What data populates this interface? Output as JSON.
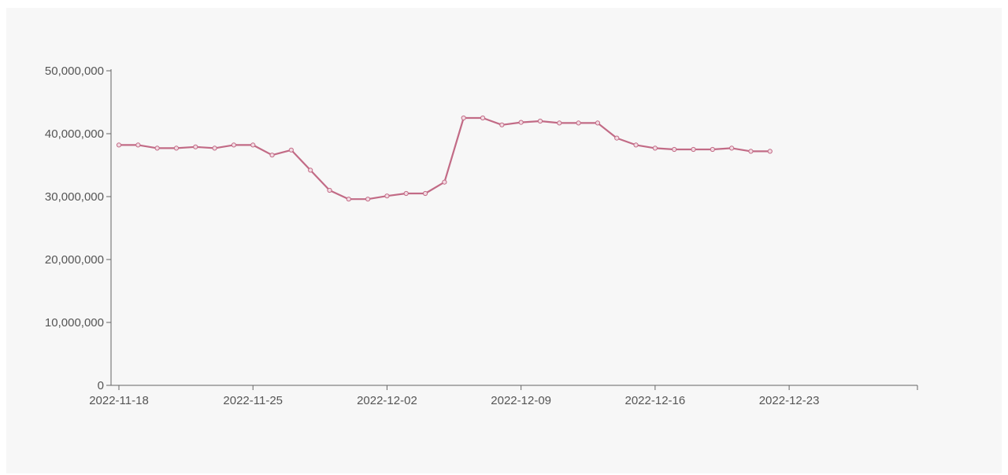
{
  "chart_data": {
    "type": "line",
    "title": "",
    "xlabel": "",
    "ylabel": "",
    "x_start": "2022-11-18",
    "x_end": "2022-12-29",
    "ylim": [
      0,
      50000000
    ],
    "y_ticks": [
      {
        "value": 0,
        "label": "0"
      },
      {
        "value": 10000000,
        "label": "10,000,000"
      },
      {
        "value": 20000000,
        "label": "20,000,000"
      },
      {
        "value": 30000000,
        "label": "30,000,000"
      },
      {
        "value": 40000000,
        "label": "40,000,000"
      },
      {
        "value": 50000000,
        "label": "50,000,000"
      }
    ],
    "x_ticks": [
      {
        "value": "2022-11-18",
        "label": "2022-11-18"
      },
      {
        "value": "2022-11-25",
        "label": "2022-11-25"
      },
      {
        "value": "2022-12-02",
        "label": "2022-12-02"
      },
      {
        "value": "2022-12-09",
        "label": "2022-12-09"
      },
      {
        "value": "2022-12-16",
        "label": "2022-12-16"
      },
      {
        "value": "2022-12-23",
        "label": "2022-12-23"
      }
    ],
    "grid": false,
    "legend": "none",
    "series": [
      {
        "color": "#c26b86",
        "points": [
          {
            "x": "2022-11-18",
            "y": 38200000
          },
          {
            "x": "2022-11-19",
            "y": 38200000
          },
          {
            "x": "2022-11-20",
            "y": 37700000
          },
          {
            "x": "2022-11-21",
            "y": 37700000
          },
          {
            "x": "2022-11-22",
            "y": 37900000
          },
          {
            "x": "2022-11-23",
            "y": 37700000
          },
          {
            "x": "2022-11-24",
            "y": 38200000
          },
          {
            "x": "2022-11-25",
            "y": 38200000
          },
          {
            "x": "2022-11-26",
            "y": 36600000
          },
          {
            "x": "2022-11-27",
            "y": 37400000
          },
          {
            "x": "2022-11-28",
            "y": 34200000
          },
          {
            "x": "2022-11-29",
            "y": 31000000
          },
          {
            "x": "2022-11-30",
            "y": 29600000
          },
          {
            "x": "2022-12-01",
            "y": 29600000
          },
          {
            "x": "2022-12-02",
            "y": 30100000
          },
          {
            "x": "2022-12-03",
            "y": 30500000
          },
          {
            "x": "2022-12-04",
            "y": 30500000
          },
          {
            "x": "2022-12-05",
            "y": 32300000
          },
          {
            "x": "2022-12-06",
            "y": 42500000
          },
          {
            "x": "2022-12-07",
            "y": 42500000
          },
          {
            "x": "2022-12-08",
            "y": 41400000
          },
          {
            "x": "2022-12-09",
            "y": 41800000
          },
          {
            "x": "2022-12-10",
            "y": 42000000
          },
          {
            "x": "2022-12-11",
            "y": 41700000
          },
          {
            "x": "2022-12-12",
            "y": 41700000
          },
          {
            "x": "2022-12-13",
            "y": 41700000
          },
          {
            "x": "2022-12-14",
            "y": 39300000
          },
          {
            "x": "2022-12-15",
            "y": 38200000
          },
          {
            "x": "2022-12-16",
            "y": 37700000
          },
          {
            "x": "2022-12-17",
            "y": 37500000
          },
          {
            "x": "2022-12-18",
            "y": 37500000
          },
          {
            "x": "2022-12-19",
            "y": 37500000
          },
          {
            "x": "2022-12-20",
            "y": 37700000
          },
          {
            "x": "2022-12-21",
            "y": 37200000
          },
          {
            "x": "2022-12-22",
            "y": 37200000
          }
        ]
      }
    ]
  }
}
